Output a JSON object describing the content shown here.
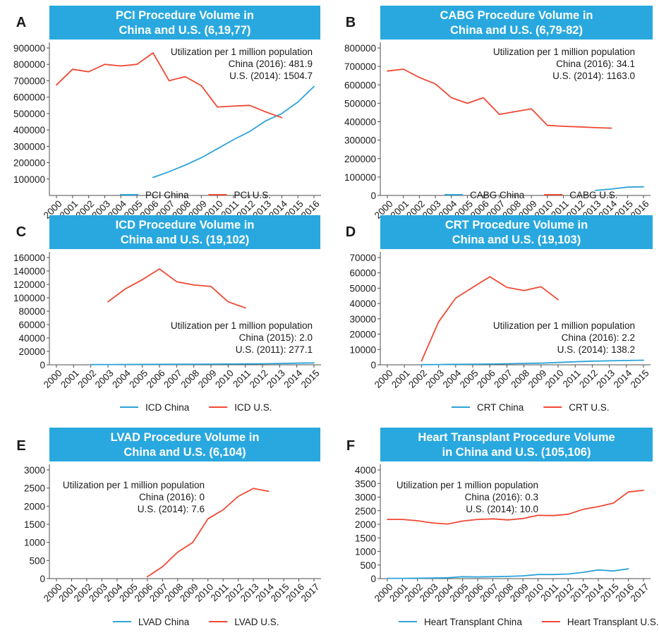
{
  "colors": {
    "banner": "#29a8df",
    "china": "#2ea3d8",
    "us": "#ef4934",
    "text": "#1a1a1a",
    "axis": "#4d4d4d",
    "white": "#ffffff"
  },
  "chart_data": [
    {
      "letter": "A",
      "type": "line",
      "title_lines": [
        "PCI Procedure Volume in",
        "China and U.S. (6,19,77)"
      ],
      "x": [
        "2000",
        "2001",
        "2002",
        "2003",
        "2004",
        "2005",
        "2006",
        "2007",
        "2008",
        "2009",
        "2010",
        "2011",
        "2012",
        "2013",
        "2014",
        "2015",
        "2016"
      ],
      "ylim": [
        0,
        900000
      ],
      "yticks": [
        100000,
        200000,
        300000,
        400000,
        500000,
        600000,
        700000,
        800000,
        900000
      ],
      "ytick_labels": [
        "100000",
        "200000",
        "300000",
        "400000",
        "500000",
        "600000",
        "700000",
        "800000",
        "900000"
      ],
      "series": [
        {
          "name": "PCI China",
          "color": "china",
          "values": [
            null,
            null,
            null,
            null,
            null,
            null,
            110000,
            145000,
            185000,
            230000,
            285000,
            340000,
            390000,
            455000,
            500000,
            570000,
            665000
          ]
        },
        {
          "name": "PCI U.S.",
          "color": "us",
          "values": [
            675000,
            770000,
            755000,
            800000,
            790000,
            800000,
            870000,
            700000,
            725000,
            670000,
            540000,
            545000,
            550000,
            510000,
            475000,
            null,
            null
          ]
        }
      ],
      "annotation": [
        "Utilization per 1 million population",
        "China (2016): 481.9",
        "U.S. (2014): 1504.7"
      ]
    },
    {
      "letter": "B",
      "type": "line",
      "title_lines": [
        "CABG Procedure Volume in",
        "China and U.S. (6,79-82)"
      ],
      "x": [
        "2000",
        "2001",
        "2002",
        "2003",
        "2004",
        "2005",
        "2006",
        "2007",
        "2008",
        "2009",
        "2010",
        "2011",
        "2012",
        "2013",
        "2014",
        "2015",
        "2016"
      ],
      "ylim": [
        0,
        800000
      ],
      "yticks": [
        0,
        100000,
        200000,
        300000,
        400000,
        500000,
        600000,
        700000,
        800000
      ],
      "ytick_labels": [
        "0",
        "100000",
        "200000",
        "300000",
        "400000",
        "500000",
        "600000",
        "700000",
        "800000"
      ],
      "series": [
        {
          "name": "CABG China",
          "color": "china",
          "values": [
            null,
            null,
            null,
            null,
            null,
            null,
            null,
            null,
            null,
            null,
            null,
            null,
            null,
            27000,
            35000,
            45000,
            47000
          ]
        },
        {
          "name": "CABG U.S.",
          "color": "us",
          "values": [
            675000,
            685000,
            640000,
            605000,
            530000,
            500000,
            530000,
            440000,
            455000,
            470000,
            380000,
            375000,
            372000,
            368000,
            365000,
            null,
            null
          ]
        }
      ],
      "annotation": [
        "Utilization per 1 million population",
        "China (2016): 34.1",
        "U.S. (2014): 1163.0"
      ]
    },
    {
      "letter": "C",
      "type": "line",
      "title_lines": [
        "ICD Procedure Volume in",
        "China and U.S. (19,102)"
      ],
      "x": [
        "2000",
        "2001",
        "2002",
        "2003",
        "2004",
        "2005",
        "2006",
        "2007",
        "2008",
        "2009",
        "2010",
        "2011",
        "2012",
        "2013",
        "2014",
        "2015"
      ],
      "ylim": [
        0,
        160000
      ],
      "yticks": [
        0,
        20000,
        40000,
        60000,
        80000,
        100000,
        120000,
        140000,
        160000
      ],
      "ytick_labels": [
        "0",
        "20000",
        "40000",
        "60000",
        "80000",
        "100000",
        "120000",
        "140000",
        "160000"
      ],
      "series": [
        {
          "name": "ICD China",
          "color": "china",
          "values": [
            null,
            null,
            300,
            400,
            500,
            600,
            700,
            800,
            900,
            1000,
            1200,
            1400,
            1600,
            1900,
            2400,
            2800
          ]
        },
        {
          "name": "ICD U.S.",
          "color": "us",
          "values": [
            null,
            null,
            null,
            94000,
            113000,
            127000,
            143000,
            124000,
            119000,
            117000,
            94000,
            85000,
            null,
            null,
            null,
            null
          ]
        }
      ],
      "annotation": [
        "Utilization per 1 million population",
        "China (2015): 2.0",
        "U.S. (2011): 277.1"
      ]
    },
    {
      "letter": "D",
      "type": "line",
      "title_lines": [
        "CRT Procedure Volume in",
        "China and U.S. (19,103)"
      ],
      "x": [
        "2000",
        "2001",
        "2002",
        "2003",
        "2004",
        "2005",
        "2006",
        "2007",
        "2008",
        "2009",
        "2010",
        "2011",
        "2012",
        "2013",
        "2014",
        "2015"
      ],
      "ylim": [
        0,
        70000
      ],
      "yticks": [
        0,
        10000,
        20000,
        30000,
        40000,
        50000,
        60000,
        70000
      ],
      "ytick_labels": [
        "0",
        "10000",
        "20000",
        "30000",
        "40000",
        "50000",
        "60000",
        "70000"
      ],
      "series": [
        {
          "name": "CRT China",
          "color": "china",
          "values": [
            null,
            null,
            100,
            200,
            300,
            400,
            500,
            700,
            900,
            1100,
            1500,
            2000,
            2400,
            2600,
            2800,
            3000
          ]
        },
        {
          "name": "CRT U.S.",
          "color": "us",
          "values": [
            null,
            null,
            2500,
            28000,
            43500,
            50500,
            57500,
            50500,
            48500,
            51000,
            42500,
            null,
            null,
            null,
            null,
            null
          ]
        }
      ],
      "annotation": [
        "Utilization per 1 million population",
        "China (2016): 2.2",
        "U.S. (2014): 138.2"
      ]
    },
    {
      "letter": "E",
      "type": "line",
      "title_lines": [
        "LVAD Procedure Volume in",
        "China and U.S. (6,104)"
      ],
      "x": [
        "2000",
        "2001",
        "2002",
        "2003",
        "2004",
        "2005",
        "2006",
        "2007",
        "2008",
        "2009",
        "2010",
        "2011",
        "2012",
        "2013",
        "2014",
        "2015",
        "2016",
        "2017"
      ],
      "ylim": [
        0,
        3000
      ],
      "yticks": [
        0,
        500,
        1000,
        1500,
        2000,
        2500,
        3000
      ],
      "ytick_labels": [
        "0",
        "500",
        "1000",
        "1500",
        "2000",
        "2500",
        "3000"
      ],
      "series": [
        {
          "name": "LVAD China",
          "color": "china",
          "values": [
            null,
            null,
            null,
            null,
            null,
            null,
            null,
            null,
            null,
            null,
            null,
            null,
            null,
            null,
            null,
            null,
            null,
            null
          ]
        },
        {
          "name": "LVAD U.S.",
          "color": "us",
          "values": [
            null,
            null,
            null,
            null,
            null,
            null,
            50,
            330,
            730,
            1000,
            1650,
            1900,
            2270,
            2490,
            2410,
            null,
            null,
            null
          ]
        }
      ],
      "annotation": [
        "Utilization per 1 million population",
        "China (2016): 0",
        "U.S. (2014): 7.6"
      ]
    },
    {
      "letter": "F",
      "type": "line",
      "title_lines": [
        "Heart Transplant Procedure Volume",
        "in China and U.S. (105,106)"
      ],
      "x": [
        "2000",
        "2001",
        "2002",
        "2003",
        "2004",
        "2005",
        "2006",
        "2007",
        "2008",
        "2009",
        "2010",
        "2011",
        "2012",
        "2013",
        "2014",
        "2015",
        "2016",
        "2017"
      ],
      "ylim": [
        0,
        4000
      ],
      "yticks": [
        0,
        500,
        1000,
        1500,
        2000,
        2500,
        3000,
        3500,
        4000
      ],
      "ytick_labels": [
        "0",
        "500",
        "1000",
        "1500",
        "2000",
        "2500",
        "3000",
        "3500",
        "4000"
      ],
      "series": [
        {
          "name": "Heart Transplant China",
          "color": "china",
          "values": [
            10,
            10,
            15,
            20,
            30,
            70,
            60,
            70,
            80,
            100,
            150,
            150,
            170,
            230,
            320,
            280,
            360,
            null
          ]
        },
        {
          "name": "Heart Transplant U.S.",
          "color": "us",
          "values": [
            2180,
            2180,
            2130,
            2050,
            2010,
            2120,
            2180,
            2200,
            2160,
            2210,
            2330,
            2320,
            2370,
            2550,
            2650,
            2780,
            3190,
            3250
          ]
        }
      ],
      "annotation": [
        "Utilization per 1 million population",
        "China (2016): 0.3",
        "U.S. (2014): 10.0"
      ]
    }
  ]
}
